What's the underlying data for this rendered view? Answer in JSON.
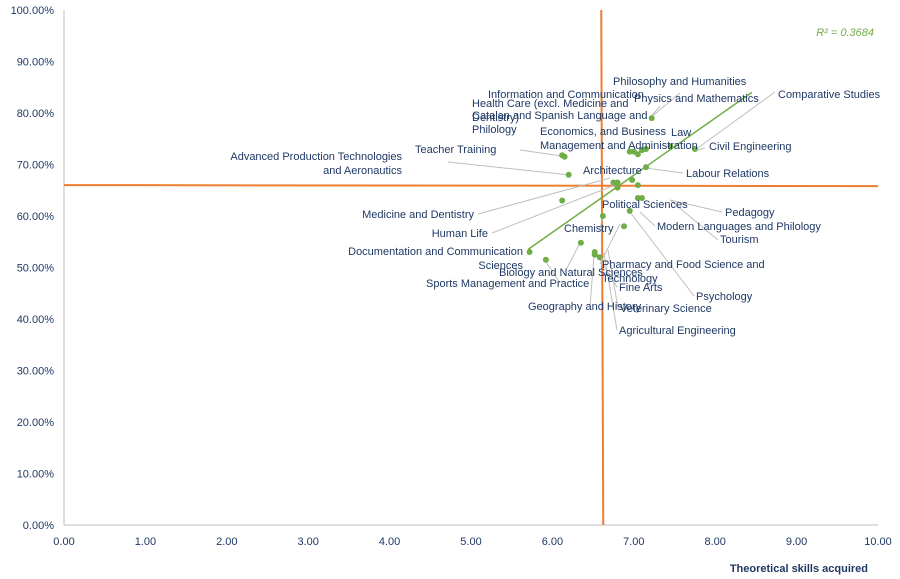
{
  "chart_data": {
    "type": "scatter",
    "xlabel": "Theoretical skills acquired",
    "ylabel": "",
    "xlim": [
      0,
      10
    ],
    "ylim": [
      0,
      100
    ],
    "x_ticks": [
      "0.00",
      "1.00",
      "2.00",
      "3.00",
      "4.00",
      "5.00",
      "6.00",
      "7.00",
      "8.00",
      "9.00",
      "10.00"
    ],
    "y_ticks": [
      "0.00%",
      "10.00%",
      "20.00%",
      "30.00%",
      "40.00%",
      "50.00%",
      "60.00%",
      "70.00%",
      "80.00%",
      "90.00%",
      "100.00%"
    ],
    "r_squared_label": "R² = 0.3684",
    "reference_lines": {
      "x": 6.6,
      "y": 66.0
    },
    "trendline": {
      "from": [
        5.7,
        53.5
      ],
      "to": [
        8.45,
        84.0
      ]
    },
    "points": [
      {
        "name": "Philosophy and Humanities",
        "x": 7.22,
        "y": 79.0
      },
      {
        "name": "Information and Communication",
        "x": 7.0,
        "y": 72.5
      },
      {
        "name": "Physics and Mathematics",
        "x": 7.1,
        "y": 72.8
      },
      {
        "name": "Health Care (excl. Medicine and Dentistry)",
        "x": 6.15,
        "y": 71.5
      },
      {
        "name": "Catalan and Spanish Language and Philology",
        "x": 7.05,
        "y": 72.0
      },
      {
        "name": "Comparative Studies",
        "x": 7.75,
        "y": 73.0
      },
      {
        "name": "Economics, and Business Management and Administration",
        "x": 6.95,
        "y": 72.5
      },
      {
        "name": "Law",
        "x": 7.15,
        "y": 73.0
      },
      {
        "name": "Teacher Training",
        "x": 6.12,
        "y": 71.8
      },
      {
        "name": "Civil Engineering",
        "x": 7.45,
        "y": 73.5
      },
      {
        "name": "Advanced Production Technologies and Aeronautics",
        "x": 6.2,
        "y": 68.0
      },
      {
        "name": "Architecture",
        "x": 6.8,
        "y": 66.5
      },
      {
        "name": "Labour Relations",
        "x": 7.15,
        "y": 69.5
      },
      {
        "name": "Medicine and Dentistry",
        "x": 6.12,
        "y": 63.0
      },
      {
        "name": "Political Sciences",
        "x": 6.98,
        "y": 67.0
      },
      {
        "name": "Pedagogy",
        "x": 7.05,
        "y": 66.0
      },
      {
        "name": "Human Life",
        "x": 6.8,
        "y": 65.5
      },
      {
        "name": "Chemistry",
        "x": 6.62,
        "y": 60.0
      },
      {
        "name": "Modern Languages and Philology",
        "x": 7.1,
        "y": 63.5
      },
      {
        "name": "Tourism",
        "x": 7.05,
        "y": 63.5
      },
      {
        "name": "Documentation and Communication Sciences",
        "x": 5.72,
        "y": 53.0
      },
      {
        "name": "Biology and Natural Sciences",
        "x": 6.35,
        "y": 54.8
      },
      {
        "name": "Pharmacy and Food Science and Technology",
        "x": 6.88,
        "y": 58.0
      },
      {
        "name": "Sports Management and Practice",
        "x": 5.92,
        "y": 51.5
      },
      {
        "name": "Fine Arts",
        "x": 6.52,
        "y": 53.0
      },
      {
        "name": "Psychology",
        "x": 6.95,
        "y": 61.0
      },
      {
        "name": "Geography and History",
        "x": 6.52,
        "y": 52.5
      },
      {
        "name": "Veterinary Science",
        "x": 6.75,
        "y": 66.5
      },
      {
        "name": "Agricultural Engineering",
        "x": 6.58,
        "y": 52.0
      }
    ],
    "point_color": "#70ad47",
    "reference_line_color": "#ed7d31",
    "trendline_color": "#70ad47",
    "label_color": "#1f3864",
    "grid": false,
    "legend": "none"
  }
}
